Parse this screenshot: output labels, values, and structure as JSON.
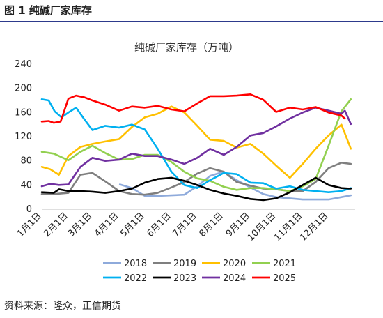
{
  "figure": {
    "label": "图 1  纯碱厂家库存",
    "source": "资料来源：隆众，正信期货"
  },
  "chart_data": {
    "type": "line",
    "title": "纯碱厂家库存（万吨）",
    "xlabel": "",
    "ylabel": "",
    "ylim": [
      0,
      240
    ],
    "yticks": [
      0,
      40,
      80,
      120,
      160,
      200,
      240
    ],
    "x_tick_labels": [
      "1月1日",
      "2月1日",
      "3月1日",
      "4月1日",
      "5月1日",
      "6月1日",
      "7月1日",
      "8月1日",
      "9月1日",
      "10月1日",
      "11月1日",
      "12月1日"
    ],
    "x_tick_days": [
      0,
      31,
      59,
      90,
      120,
      151,
      181,
      212,
      243,
      273,
      304,
      334
    ],
    "x_range_days": [
      0,
      365
    ],
    "grid": false,
    "legend_position": "bottom",
    "series": [
      {
        "name": "2018",
        "color": "#8eaadb",
        "x": [
          91,
          105,
          120,
          135,
          151,
          166,
          181,
          196,
          212,
          227,
          243,
          258,
          273,
          289,
          304,
          319,
          334,
          349,
          360
        ],
        "y": [
          41,
          35,
          22,
          22,
          23,
          24,
          38,
          55,
          62,
          48,
          36,
          25,
          20,
          18,
          16,
          16,
          16,
          20,
          23
        ]
      },
      {
        "name": "2019",
        "color": "#7f7f7f",
        "x": [
          0,
          14,
          31,
          45,
          59,
          74,
          90,
          105,
          120,
          135,
          151,
          166,
          181,
          196,
          212,
          227,
          243,
          258,
          273,
          289,
          304,
          319,
          334,
          349,
          360
        ],
        "y": [
          25,
          25,
          27,
          57,
          60,
          46,
          30,
          25,
          24,
          27,
          36,
          45,
          59,
          68,
          62,
          45,
          39,
          34,
          33,
          30,
          30,
          45,
          68,
          77,
          75
        ]
      },
      {
        "name": "2020",
        "color": "#ffc000",
        "x": [
          0,
          10,
          20,
          31,
          45,
          59,
          74,
          90,
          105,
          120,
          135,
          151,
          166,
          181,
          196,
          212,
          227,
          243,
          258,
          273,
          289,
          304,
          319,
          334,
          349,
          360
        ],
        "y": [
          70,
          66,
          57,
          88,
          103,
          108,
          112,
          116,
          136,
          152,
          158,
          170,
          160,
          138,
          115,
          113,
          102,
          108,
          92,
          72,
          52,
          75,
          100,
          122,
          140,
          100
        ]
      },
      {
        "name": "2021",
        "color": "#92d050",
        "x": [
          0,
          14,
          31,
          45,
          59,
          74,
          90,
          105,
          120,
          135,
          151,
          166,
          181,
          196,
          212,
          227,
          243,
          258,
          273,
          289,
          304,
          319,
          334,
          349,
          360
        ],
        "y": [
          95,
          92,
          81,
          95,
          105,
          93,
          82,
          83,
          90,
          90,
          78,
          62,
          51,
          47,
          37,
          32,
          35,
          35,
          33,
          30,
          38,
          50,
          105,
          162,
          182
        ]
      },
      {
        "name": "2022",
        "color": "#00b0f0",
        "x": [
          0,
          8,
          15,
          23,
          31,
          40,
          50,
          59,
          74,
          90,
          105,
          120,
          135,
          151,
          166,
          181,
          196,
          212,
          227,
          243,
          258,
          273,
          289,
          304,
          319,
          334,
          349,
          360
        ],
        "y": [
          182,
          180,
          162,
          152,
          160,
          168,
          148,
          131,
          138,
          135,
          140,
          132,
          100,
          62,
          40,
          35,
          48,
          60,
          58,
          44,
          43,
          34,
          38,
          32,
          30,
          28,
          30,
          35
        ]
      },
      {
        "name": "2023",
        "color": "#000000",
        "x": [
          0,
          14,
          20,
          31,
          45,
          59,
          74,
          90,
          105,
          120,
          135,
          151,
          166,
          181,
          196,
          212,
          227,
          243,
          258,
          273,
          289,
          304,
          319,
          334,
          349,
          360
        ],
        "y": [
          28,
          27,
          33,
          30,
          30,
          29,
          27,
          30,
          34,
          44,
          50,
          52,
          47,
          40,
          32,
          26,
          22,
          17,
          15,
          18,
          28,
          40,
          52,
          40,
          35,
          34
        ]
      },
      {
        "name": "2024",
        "color": "#7030a0",
        "x": [
          0,
          10,
          20,
          31,
          45,
          59,
          74,
          90,
          105,
          120,
          135,
          151,
          166,
          181,
          196,
          212,
          227,
          243,
          258,
          273,
          289,
          304,
          319,
          334,
          349,
          353,
          360
        ],
        "y": [
          38,
          42,
          40,
          41,
          70,
          85,
          80,
          82,
          92,
          88,
          88,
          82,
          75,
          85,
          100,
          90,
          103,
          122,
          126,
          137,
          150,
          160,
          168,
          163,
          158,
          163,
          141
        ]
      },
      {
        "name": "2025",
        "color": "#ff0000",
        "x": [
          0,
          8,
          14,
          22,
          31,
          40,
          50,
          59,
          74,
          90,
          105,
          120,
          135,
          151,
          166,
          181,
          196,
          212,
          227,
          243,
          258,
          273,
          289,
          304,
          319,
          334,
          349,
          353
        ],
        "y": [
          145,
          146,
          143,
          145,
          183,
          188,
          185,
          180,
          173,
          163,
          170,
          168,
          171,
          165,
          162,
          175,
          187,
          187,
          188,
          190,
          181,
          161,
          168,
          165,
          169,
          160,
          155,
          150
        ]
      }
    ]
  }
}
